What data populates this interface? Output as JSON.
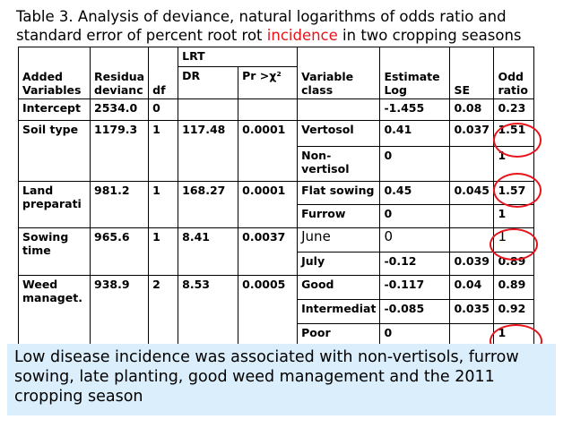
{
  "title": {
    "before": "Table 3. Analysis of deviance, natural logarithms of odds ratio and standard error of percent root rot ",
    "highlight": "incidence",
    "after": " in two cropping seasons"
  },
  "header": {
    "added": "Added Variables",
    "resid": "Residua devianc",
    "df": "df",
    "lrt": "LRT",
    "dr": "DR",
    "pr": "Pr >χ²",
    "varclass": "Variable class",
    "estimate": "Estimate Log",
    "se": "SE",
    "odd": "Odd ratio"
  },
  "rows": {
    "intercept": {
      "var": "Intercept",
      "res": "2534.0",
      "df": "0",
      "dr": "",
      "pr": "",
      "cls": "",
      "est": "-1.455",
      "se": "0.08",
      "odd": "0.23"
    },
    "soil": {
      "var": "Soil type",
      "res": "1179.3",
      "df": "1",
      "dr": "117.48",
      "pr": "0.0001",
      "classes": [
        {
          "cls": "Vertosol",
          "est": "0.41",
          "se": "0.037",
          "odd": "1.51"
        },
        {
          "cls": "Non-vertisol",
          "est": "0",
          "se": "",
          "odd": "1"
        }
      ]
    },
    "land": {
      "var": "Land preparati",
      "res": "981.2",
      "df": "1",
      "dr": "168.27",
      "pr": "0.0001",
      "classes": [
        {
          "cls": "Flat sowing",
          "est": "0.45",
          "se": "0.045",
          "odd": "1.57"
        },
        {
          "cls": "Furrow",
          "est": "0",
          "se": "",
          "odd": "1"
        }
      ]
    },
    "sowing": {
      "var": "Sowing time",
      "res": "965.6",
      "df": "1",
      "dr": "8.41",
      "pr": "0.0037",
      "classes": [
        {
          "cls": "June",
          "est": "0",
          "se": "",
          "odd": "1"
        },
        {
          "cls": "July",
          "est": "-0.12",
          "se": "0.039",
          "odd": "0.89"
        }
      ]
    },
    "weed": {
      "var": "Weed managet.",
      "res": "938.9",
      "df": "2",
      "dr": "8.53",
      "pr": "0.0005",
      "classes": [
        {
          "cls": "Good",
          "est": "-0.117",
          "se": "0.04",
          "odd": "0.89"
        },
        {
          "cls": "Intermediat",
          "est": "-0.085",
          "se": "0.035",
          "odd": "0.92"
        },
        {
          "cls": "Poor",
          "est": "0",
          "se": "",
          "odd": "1"
        }
      ]
    }
  },
  "note": "Low disease incidence was associated with non-vertisols, furrow sowing, late planting, good weed management and the 2011 cropping season",
  "colors": {
    "highlight": "#e8141b",
    "note_background": "#dbeefb"
  }
}
